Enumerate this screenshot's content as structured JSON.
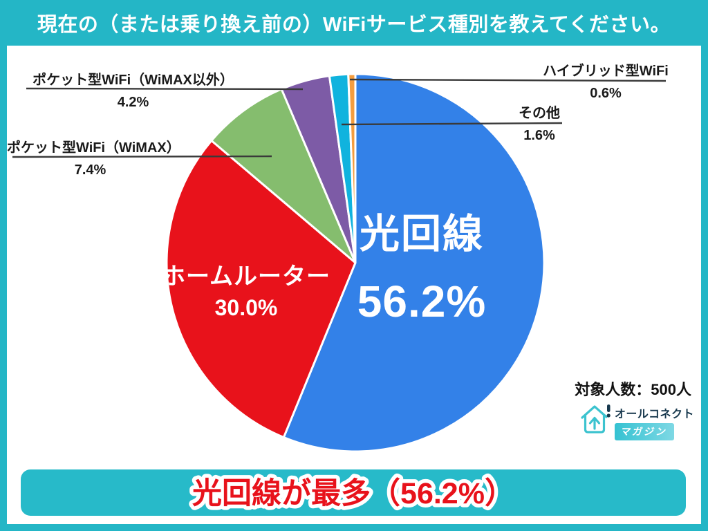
{
  "header": {
    "title": "現在の（または乗り換え前の）WiFiサービス種別を教えてください。"
  },
  "chart_data": {
    "type": "pie",
    "title": "現在の（または乗り換え前の）WiFiサービス種別",
    "unit": "%",
    "start_angle_deg": -90,
    "direction": "clockwise",
    "slice_border_color": "#ffffff",
    "legend_position": "callout-labels",
    "segments": [
      {
        "label": "光回線",
        "value": 56.2,
        "display": "56.2%",
        "color": "#3381e8"
      },
      {
        "label": "ホームルーター",
        "value": 30.0,
        "display": "30.0%",
        "color": "#e8121b"
      },
      {
        "label": "ポケット型WiFi（WiMAX）",
        "value": 7.4,
        "display": "7.4%",
        "color": "#85bd6e"
      },
      {
        "label": "ポケット型WiFi（WiMAX以外）",
        "value": 4.2,
        "display": "4.2%",
        "color": "#7d5ba6"
      },
      {
        "label": "その他",
        "value": 1.6,
        "display": "1.6%",
        "color": "#10b3de"
      },
      {
        "label": "ハイブリッド型WiFi",
        "value": 0.6,
        "display": "0.6%",
        "color": "#f49d3f"
      }
    ]
  },
  "sample": {
    "text": "対象人数：500人"
  },
  "logo": {
    "brand": "オールコネクト",
    "sub": "マガジン",
    "icon": "house-arrow-icon"
  },
  "footer": {
    "headline": "光回線が最多（56.2%）"
  },
  "colors": {
    "frame": "#24b6c6",
    "banner": "#27bac9",
    "headline_text": "#e8121b",
    "label_text": "#1a1a1a",
    "leader_line": "#3a3a3a"
  }
}
